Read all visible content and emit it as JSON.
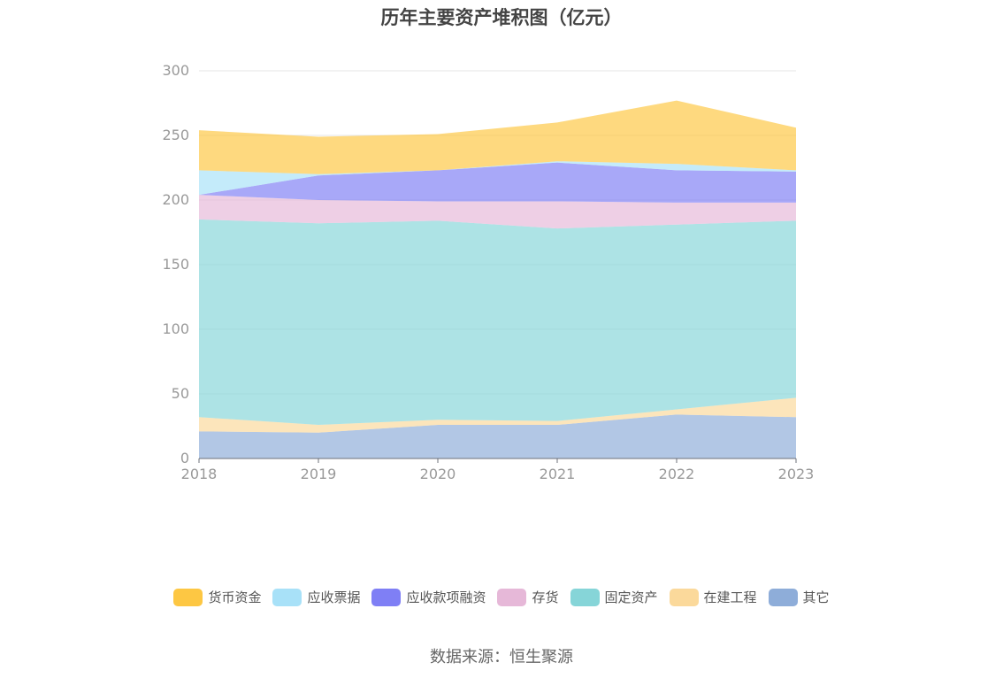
{
  "chart_data": {
    "type": "area",
    "stacked": true,
    "title": "历年主要资产堆积图（亿元）",
    "x": [
      "2018",
      "2019",
      "2020",
      "2021",
      "2022",
      "2023"
    ],
    "ylim": [
      0,
      300
    ],
    "yticks": [
      0,
      50,
      100,
      150,
      200,
      250,
      300
    ],
    "grid": true,
    "legend_position": "bottom",
    "series": [
      {
        "name": "其它",
        "color": "#8eadd9",
        "values": [
          21,
          20,
          26,
          26,
          34,
          32
        ]
      },
      {
        "name": "在建工程",
        "color": "#fbd99b",
        "values": [
          11,
          6,
          4,
          3,
          4,
          15
        ]
      },
      {
        "name": "固定资产",
        "color": "#86d5d8",
        "values": [
          153,
          156,
          154,
          149,
          143,
          137
        ]
      },
      {
        "name": "存货",
        "color": "#e6b8d8",
        "values": [
          19,
          18,
          15,
          21,
          17,
          14
        ]
      },
      {
        "name": "应收款项融资",
        "color": "#7f7ff5",
        "values": [
          0,
          19,
          24,
          30,
          25,
          24
        ]
      },
      {
        "name": "应收票据",
        "color": "#a8e1f8",
        "values": [
          19,
          1,
          0,
          1,
          5,
          1
        ]
      },
      {
        "name": "货币资金",
        "color": "#fdc743",
        "values": [
          31,
          29,
          28,
          30,
          49,
          33
        ]
      }
    ],
    "legend_order": [
      "货币资金",
      "应收票据",
      "应收款项融资",
      "存货",
      "固定资产",
      "在建工程",
      "其它"
    ]
  },
  "source": "数据来源：恒生聚源"
}
